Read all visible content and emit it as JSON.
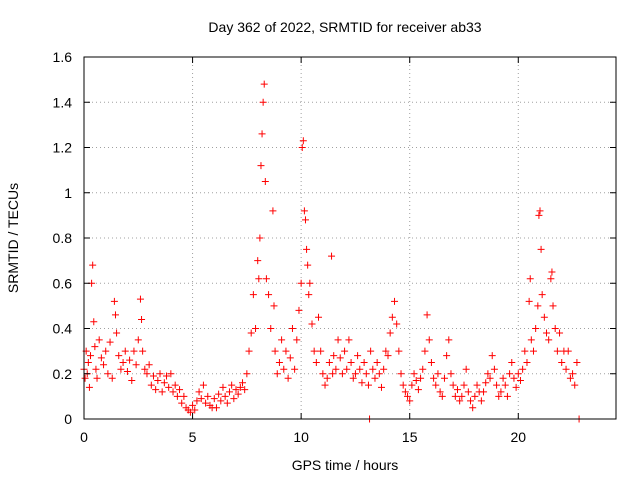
{
  "chart_data": {
    "type": "scatter",
    "title": "Day 362 of 2022, SRMTID for receiver ab33",
    "xlabel": "GPS time / hours",
    "ylabel": "SRMTID / TECUs",
    "xlim": [
      0,
      24.5
    ],
    "ylim": [
      0,
      1.6
    ],
    "xticks": [
      0,
      5,
      10,
      15,
      20
    ],
    "xtick_labels": [
      "0",
      "5",
      "10",
      "15",
      "20"
    ],
    "yticks": [
      0,
      0.2,
      0.4,
      0.6,
      0.8,
      1.0,
      1.2,
      1.4,
      1.6
    ],
    "ytick_labels": [
      "0",
      "0.2",
      "0.4",
      "0.6",
      "0.8",
      "1",
      "1.2",
      "1.4",
      "1.6"
    ],
    "grid": true,
    "marker": "+",
    "color": "#ff0000",
    "series": [
      {
        "name": "ab33",
        "points": [
          [
            0.0,
            0.22
          ],
          [
            0.05,
            0.18
          ],
          [
            0.1,
            0.3
          ],
          [
            0.15,
            0.2
          ],
          [
            0.2,
            0.25
          ],
          [
            0.25,
            0.14
          ],
          [
            0.3,
            0.28
          ],
          [
            0.35,
            0.6
          ],
          [
            0.4,
            0.68
          ],
          [
            0.45,
            0.43
          ],
          [
            0.5,
            0.32
          ],
          [
            0.55,
            0.22
          ],
          [
            0.6,
            0.18
          ],
          [
            0.7,
            0.35
          ],
          [
            0.8,
            0.27
          ],
          [
            0.9,
            0.24
          ],
          [
            1.0,
            0.3
          ],
          [
            1.1,
            0.2
          ],
          [
            1.2,
            0.34
          ],
          [
            1.3,
            0.18
          ],
          [
            1.4,
            0.52
          ],
          [
            1.45,
            0.46
          ],
          [
            1.5,
            0.38
          ],
          [
            1.6,
            0.28
          ],
          [
            1.7,
            0.22
          ],
          [
            1.8,
            0.25
          ],
          [
            1.9,
            0.3
          ],
          [
            2.0,
            0.21
          ],
          [
            2.1,
            0.26
          ],
          [
            2.2,
            0.17
          ],
          [
            2.3,
            0.3
          ],
          [
            2.4,
            0.24
          ],
          [
            2.5,
            0.35
          ],
          [
            2.6,
            0.53
          ],
          [
            2.65,
            0.44
          ],
          [
            2.7,
            0.3
          ],
          [
            2.8,
            0.22
          ],
          [
            2.9,
            0.2
          ],
          [
            3.0,
            0.24
          ],
          [
            3.1,
            0.15
          ],
          [
            3.2,
            0.19
          ],
          [
            3.3,
            0.13
          ],
          [
            3.4,
            0.17
          ],
          [
            3.5,
            0.2
          ],
          [
            3.6,
            0.12
          ],
          [
            3.7,
            0.16
          ],
          [
            3.8,
            0.19
          ],
          [
            3.9,
            0.14
          ],
          [
            4.0,
            0.2
          ],
          [
            4.1,
            0.12
          ],
          [
            4.2,
            0.15
          ],
          [
            4.3,
            0.1
          ],
          [
            4.4,
            0.13
          ],
          [
            4.5,
            0.07
          ],
          [
            4.6,
            0.1
          ],
          [
            4.7,
            0.05
          ],
          [
            4.8,
            0.04
          ],
          [
            4.9,
            0.03
          ],
          [
            5.0,
            0.06
          ],
          [
            5.1,
            0.04
          ],
          [
            5.2,
            0.08
          ],
          [
            5.3,
            0.12
          ],
          [
            5.4,
            0.09
          ],
          [
            5.5,
            0.15
          ],
          [
            5.6,
            0.07
          ],
          [
            5.7,
            0.1
          ],
          [
            5.8,
            0.06
          ],
          [
            5.9,
            0.05
          ],
          [
            6.0,
            0.09
          ],
          [
            6.1,
            0.05
          ],
          [
            6.2,
            0.11
          ],
          [
            6.3,
            0.08
          ],
          [
            6.4,
            0.14
          ],
          [
            6.5,
            0.1
          ],
          [
            6.6,
            0.07
          ],
          [
            6.7,
            0.12
          ],
          [
            6.8,
            0.15
          ],
          [
            6.9,
            0.09
          ],
          [
            7.0,
            0.13
          ],
          [
            7.1,
            0.11
          ],
          [
            7.2,
            0.14
          ],
          [
            7.3,
            0.16
          ],
          [
            7.4,
            0.13
          ],
          [
            7.5,
            0.2
          ],
          [
            7.6,
            0.3
          ],
          [
            7.7,
            0.38
          ],
          [
            7.8,
            0.55
          ],
          [
            7.9,
            0.4
          ],
          [
            8.0,
            0.7
          ],
          [
            8.05,
            0.62
          ],
          [
            8.1,
            0.8
          ],
          [
            8.15,
            1.12
          ],
          [
            8.2,
            1.26
          ],
          [
            8.25,
            1.4
          ],
          [
            8.3,
            1.48
          ],
          [
            8.35,
            1.05
          ],
          [
            8.4,
            0.62
          ],
          [
            8.5,
            0.55
          ],
          [
            8.6,
            0.4
          ],
          [
            8.7,
            0.92
          ],
          [
            8.75,
            0.5
          ],
          [
            8.8,
            0.3
          ],
          [
            8.9,
            0.2
          ],
          [
            9.0,
            0.25
          ],
          [
            9.1,
            0.35
          ],
          [
            9.2,
            0.22
          ],
          [
            9.3,
            0.3
          ],
          [
            9.4,
            0.18
          ],
          [
            9.5,
            0.27
          ],
          [
            9.6,
            0.4
          ],
          [
            9.7,
            0.22
          ],
          [
            9.8,
            0.35
          ],
          [
            9.9,
            0.48
          ],
          [
            10.0,
            0.6
          ],
          [
            10.05,
            1.2
          ],
          [
            10.1,
            1.23
          ],
          [
            10.15,
            0.92
          ],
          [
            10.2,
            0.88
          ],
          [
            10.25,
            0.75
          ],
          [
            10.3,
            0.68
          ],
          [
            10.35,
            0.55
          ],
          [
            10.4,
            0.6
          ],
          [
            10.5,
            0.42
          ],
          [
            10.6,
            0.3
          ],
          [
            10.7,
            0.25
          ],
          [
            10.8,
            0.45
          ],
          [
            10.9,
            0.3
          ],
          [
            11.0,
            0.2
          ],
          [
            11.1,
            0.15
          ],
          [
            11.2,
            0.18
          ],
          [
            11.3,
            0.25
          ],
          [
            11.4,
            0.72
          ],
          [
            11.45,
            0.2
          ],
          [
            11.5,
            0.28
          ],
          [
            11.6,
            0.22
          ],
          [
            11.7,
            0.35
          ],
          [
            11.8,
            0.27
          ],
          [
            11.9,
            0.2
          ],
          [
            12.0,
            0.3
          ],
          [
            12.1,
            0.22
          ],
          [
            12.2,
            0.35
          ],
          [
            12.3,
            0.25
          ],
          [
            12.4,
            0.18
          ],
          [
            12.5,
            0.2
          ],
          [
            12.6,
            0.28
          ],
          [
            12.7,
            0.22
          ],
          [
            12.8,
            0.16
          ],
          [
            12.9,
            0.25
          ],
          [
            13.0,
            0.2
          ],
          [
            13.1,
            0.15
          ],
          [
            13.15,
            0.0
          ],
          [
            13.2,
            0.3
          ],
          [
            13.3,
            0.22
          ],
          [
            13.4,
            0.18
          ],
          [
            13.5,
            0.25
          ],
          [
            13.6,
            0.2
          ],
          [
            13.7,
            0.14
          ],
          [
            13.8,
            0.22
          ],
          [
            13.9,
            0.3
          ],
          [
            14.0,
            0.28
          ],
          [
            14.1,
            0.38
          ],
          [
            14.2,
            0.45
          ],
          [
            14.3,
            0.52
          ],
          [
            14.4,
            0.42
          ],
          [
            14.5,
            0.3
          ],
          [
            14.6,
            0.2
          ],
          [
            14.7,
            0.15
          ],
          [
            14.8,
            0.12
          ],
          [
            14.9,
            0.1
          ],
          [
            15.0,
            0.08
          ],
          [
            15.1,
            0.15
          ],
          [
            15.2,
            0.2
          ],
          [
            15.3,
            0.17
          ],
          [
            15.4,
            0.13
          ],
          [
            15.5,
            0.18
          ],
          [
            15.6,
            0.22
          ],
          [
            15.7,
            0.3
          ],
          [
            15.8,
            0.46
          ],
          [
            15.9,
            0.35
          ],
          [
            16.0,
            0.25
          ],
          [
            16.1,
            0.18
          ],
          [
            16.2,
            0.15
          ],
          [
            16.3,
            0.2
          ],
          [
            16.4,
            0.12
          ],
          [
            16.5,
            0.1
          ],
          [
            16.6,
            0.18
          ],
          [
            16.7,
            0.28
          ],
          [
            16.8,
            0.35
          ],
          [
            16.9,
            0.2
          ],
          [
            17.0,
            0.15
          ],
          [
            17.1,
            0.1
          ],
          [
            17.2,
            0.13
          ],
          [
            17.3,
            0.08
          ],
          [
            17.4,
            0.1
          ],
          [
            17.5,
            0.15
          ],
          [
            17.6,
            0.22
          ],
          [
            17.7,
            0.12
          ],
          [
            17.8,
            0.08
          ],
          [
            17.9,
            0.05
          ],
          [
            18.0,
            0.1
          ],
          [
            18.1,
            0.15
          ],
          [
            18.2,
            0.12
          ],
          [
            18.3,
            0.08
          ],
          [
            18.4,
            0.12
          ],
          [
            18.5,
            0.16
          ],
          [
            18.6,
            0.2
          ],
          [
            18.7,
            0.18
          ],
          [
            18.8,
            0.28
          ],
          [
            18.9,
            0.22
          ],
          [
            19.0,
            0.15
          ],
          [
            19.1,
            0.1
          ],
          [
            19.2,
            0.12
          ],
          [
            19.3,
            0.18
          ],
          [
            19.4,
            0.15
          ],
          [
            19.5,
            0.1
          ],
          [
            19.6,
            0.2
          ],
          [
            19.7,
            0.25
          ],
          [
            19.8,
            0.18
          ],
          [
            19.9,
            0.14
          ],
          [
            20.0,
            0.2
          ],
          [
            20.1,
            0.17
          ],
          [
            20.2,
            0.22
          ],
          [
            20.3,
            0.3
          ],
          [
            20.4,
            0.25
          ],
          [
            20.5,
            0.52
          ],
          [
            20.55,
            0.62
          ],
          [
            20.6,
            0.35
          ],
          [
            20.7,
            0.3
          ],
          [
            20.8,
            0.4
          ],
          [
            20.9,
            0.5
          ],
          [
            20.95,
            0.9
          ],
          [
            21.0,
            0.92
          ],
          [
            21.05,
            0.75
          ],
          [
            21.1,
            0.55
          ],
          [
            21.2,
            0.45
          ],
          [
            21.3,
            0.38
          ],
          [
            21.4,
            0.35
          ],
          [
            21.5,
            0.62
          ],
          [
            21.55,
            0.65
          ],
          [
            21.6,
            0.5
          ],
          [
            21.7,
            0.4
          ],
          [
            21.8,
            0.3
          ],
          [
            21.9,
            0.38
          ],
          [
            22.0,
            0.25
          ],
          [
            22.1,
            0.3
          ],
          [
            22.2,
            0.22
          ],
          [
            22.3,
            0.3
          ],
          [
            22.4,
            0.18
          ],
          [
            22.5,
            0.2
          ],
          [
            22.6,
            0.15
          ],
          [
            22.7,
            0.25
          ],
          [
            22.8,
            0.0
          ]
        ]
      }
    ]
  }
}
